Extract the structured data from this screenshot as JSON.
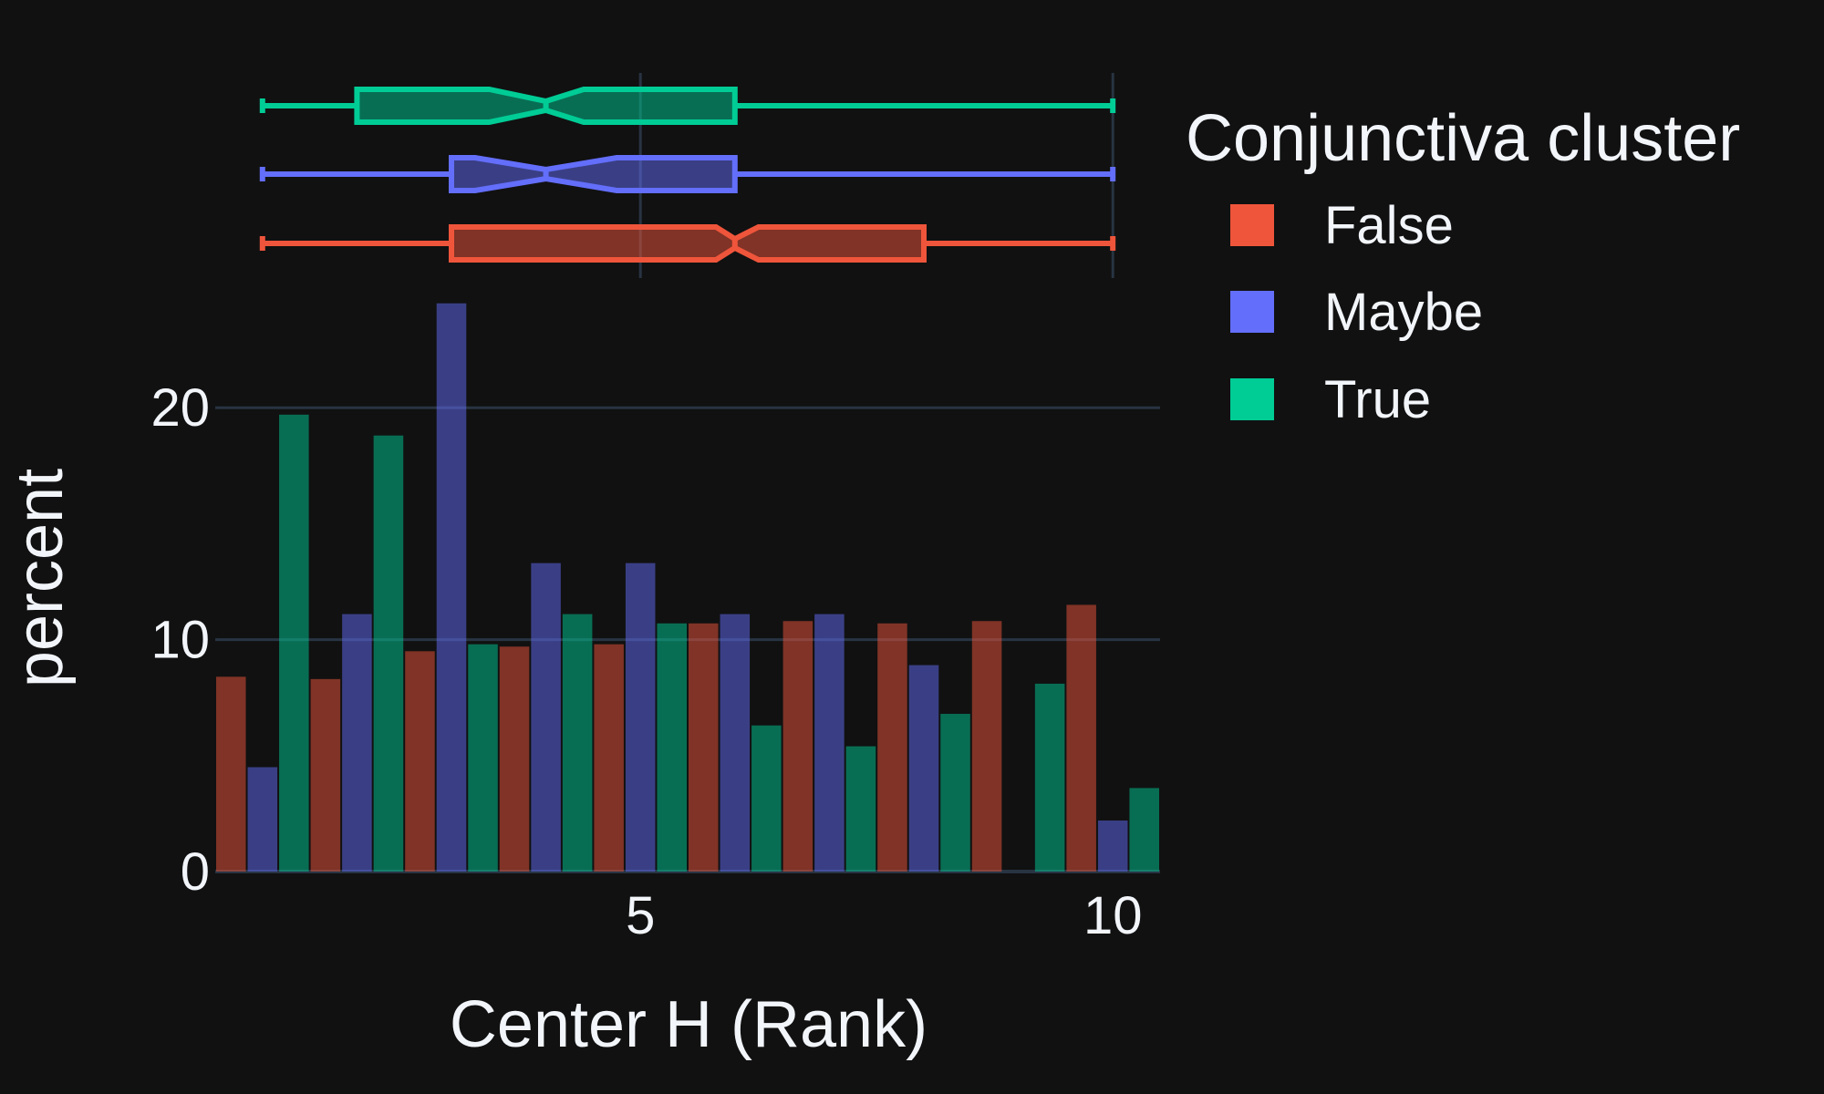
{
  "colors": {
    "background": "#111111",
    "grid": "#283442",
    "text": "#f2f5fa",
    "False": "#EF553B",
    "Maybe": "#636EFA",
    "True": "#00CC96"
  },
  "chart_data": {
    "type": "bar",
    "subtype": "histogram with marginal notched box plots",
    "xlabel": "Center H (Rank)",
    "ylabel": "percent",
    "xlim": [
      0.5,
      10.5
    ],
    "ylim": [
      0,
      25
    ],
    "x_ticks": [
      5,
      10
    ],
    "y_ticks": [
      0,
      10,
      20
    ],
    "grid": true,
    "barmode": "group",
    "legend": {
      "title": "Conjunctiva cluster",
      "placement": "top-right",
      "entries": [
        "False",
        "Maybe",
        "True"
      ]
    },
    "categories": [
      1,
      2,
      3,
      4,
      5,
      6,
      7,
      8,
      9,
      10
    ],
    "series": [
      {
        "name": "False",
        "values": [
          8.4,
          8.3,
          9.5,
          9.7,
          9.8,
          10.7,
          10.8,
          10.7,
          10.8,
          11.5
        ]
      },
      {
        "name": "Maybe",
        "values": [
          4.5,
          11.1,
          24.5,
          13.3,
          13.3,
          11.1,
          11.1,
          8.9,
          0,
          2.2
        ]
      },
      {
        "name": "True",
        "values": [
          19.7,
          18.8,
          9.8,
          11.1,
          10.7,
          6.3,
          5.4,
          6.8,
          8.1,
          3.6
        ]
      }
    ],
    "boxplots": [
      {
        "name": "False",
        "min": 1,
        "q1": 3,
        "median": 6,
        "notch_low": 5.8,
        "notch_high": 6.25,
        "q3": 8,
        "max": 10
      },
      {
        "name": "Maybe",
        "min": 1,
        "q1": 3,
        "median": 4,
        "notch_low": 3.25,
        "notch_high": 4.75,
        "q3": 6,
        "max": 10
      },
      {
        "name": "True",
        "min": 1,
        "q1": 2,
        "median": 4,
        "notch_low": 3.4,
        "notch_high": 4.4,
        "q3": 6,
        "max": 10
      }
    ]
  }
}
